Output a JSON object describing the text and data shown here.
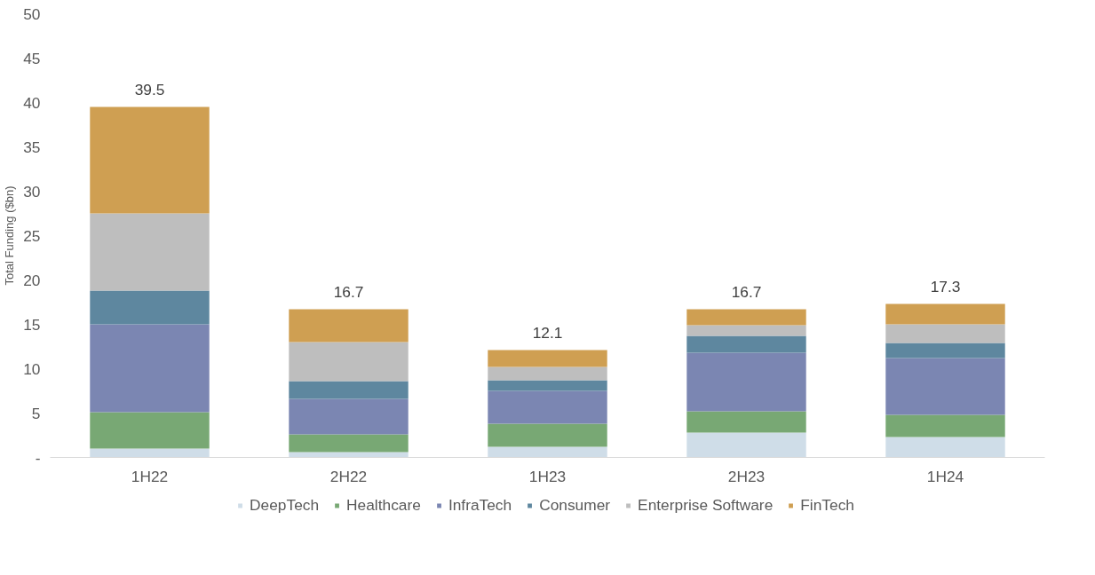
{
  "chart_data": {
    "type": "bar",
    "stacked": true,
    "ylabel": "Total Funding ($bn)",
    "categories": [
      "1H22",
      "2H22",
      "1H23",
      "2H23",
      "1H24"
    ],
    "series": [
      {
        "name": "DeepTech",
        "color": "#cfdde8",
        "values": [
          1.0,
          0.6,
          1.2,
          2.8,
          2.3
        ]
      },
      {
        "name": "Healthcare",
        "color": "#78a874",
        "values": [
          4.1,
          2.0,
          2.6,
          2.4,
          2.5
        ]
      },
      {
        "name": "InfraTech",
        "color": "#7b86b2",
        "values": [
          9.9,
          4.0,
          3.7,
          6.6,
          6.4
        ]
      },
      {
        "name": "Consumer",
        "color": "#5e879f",
        "values": [
          3.8,
          2.0,
          1.2,
          1.9,
          1.7
        ]
      },
      {
        "name": "Enterprise Software",
        "color": "#bebebe",
        "values": [
          8.7,
          4.4,
          1.5,
          1.2,
          2.1
        ]
      },
      {
        "name": "FinTech",
        "color": "#cf9f52",
        "values": [
          12.0,
          3.7,
          1.9,
          1.8,
          2.3
        ]
      }
    ],
    "totals": [
      "39.5",
      "16.7",
      "12.1",
      "16.7",
      "17.3"
    ],
    "ylim": [
      0,
      50
    ],
    "yticks": [
      {
        "value": 0,
        "label": "-"
      },
      5,
      10,
      15,
      20,
      25,
      30,
      35,
      40,
      45,
      50
    ],
    "grid": false,
    "legend": "bottom"
  }
}
